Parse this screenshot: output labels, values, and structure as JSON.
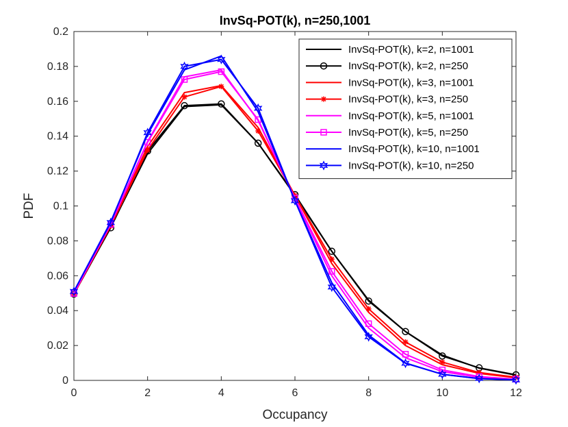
{
  "chart_data": {
    "type": "line",
    "title": "InvSq-POT(k), n=250,1001",
    "xlabel": "Occupancy",
    "ylabel": "PDF",
    "xlim": [
      0,
      12
    ],
    "ylim": [
      0,
      0.2
    ],
    "x_ticks": [
      "0",
      "2",
      "4",
      "6",
      "8",
      "10",
      "12"
    ],
    "y_ticks": [
      "0",
      "0.02",
      "0.04",
      "0.06",
      "0.08",
      "0.1",
      "0.12",
      "0.14",
      "0.16",
      "0.18",
      "0.2"
    ],
    "grid": false,
    "legend_position": "top-right",
    "x": [
      0,
      1,
      2,
      3,
      4,
      5,
      6,
      7,
      8,
      9,
      10,
      11,
      12
    ],
    "series": [
      {
        "name": "InvSq-POT(k), k=2, n=1001",
        "color": "#000000",
        "marker": "none",
        "values": [
          0.05,
          0.088,
          0.13,
          0.157,
          0.158,
          0.136,
          0.106,
          0.074,
          0.046,
          0.028,
          0.0145,
          0.007,
          0.003
        ]
      },
      {
        "name": "InvSq-POT(k), k=2, n=250",
        "color": "#000000",
        "marker": "circle",
        "values": [
          0.0495,
          0.0875,
          0.1315,
          0.1575,
          0.1585,
          0.136,
          0.1065,
          0.074,
          0.0455,
          0.028,
          0.014,
          0.0072,
          0.0032
        ]
      },
      {
        "name": "InvSq-POT(k), k=3, n=1001",
        "color": "#ff0000",
        "marker": "none",
        "values": [
          0.05,
          0.089,
          0.134,
          0.165,
          0.169,
          0.145,
          0.106,
          0.067,
          0.039,
          0.02,
          0.009,
          0.004,
          0.0015
        ]
      },
      {
        "name": "InvSq-POT(k), k=3, n=250",
        "color": "#ff0000",
        "marker": "asterisk",
        "values": [
          0.0495,
          0.0885,
          0.132,
          0.1625,
          0.1685,
          0.143,
          0.106,
          0.0695,
          0.041,
          0.022,
          0.0105,
          0.0045,
          0.0018
        ]
      },
      {
        "name": "InvSq-POT(k), k=5, n=1001",
        "color": "#ff00ff",
        "marker": "none",
        "values": [
          0.05,
          0.09,
          0.137,
          0.174,
          0.178,
          0.149,
          0.104,
          0.06,
          0.03,
          0.013,
          0.005,
          0.0018,
          0.0005
        ]
      },
      {
        "name": "InvSq-POT(k), k=5, n=250",
        "color": "#ff00ff",
        "marker": "square",
        "values": [
          0.0498,
          0.0895,
          0.1365,
          0.1725,
          0.177,
          0.1495,
          0.1045,
          0.0625,
          0.0325,
          0.015,
          0.006,
          0.0022,
          0.0007
        ]
      },
      {
        "name": "InvSq-POT(k), k=10, n=1001",
        "color": "#0000ff",
        "marker": "none",
        "values": [
          0.051,
          0.091,
          0.141,
          0.178,
          0.186,
          0.154,
          0.103,
          0.056,
          0.026,
          0.01,
          0.0035,
          0.001,
          0.0003
        ]
      },
      {
        "name": "InvSq-POT(k), k=10, n=250",
        "color": "#0000ff",
        "marker": "hexagram",
        "values": [
          0.051,
          0.0905,
          0.142,
          0.18,
          0.184,
          0.156,
          0.103,
          0.0535,
          0.025,
          0.0098,
          0.0035,
          0.0011,
          0.0003
        ]
      }
    ]
  }
}
